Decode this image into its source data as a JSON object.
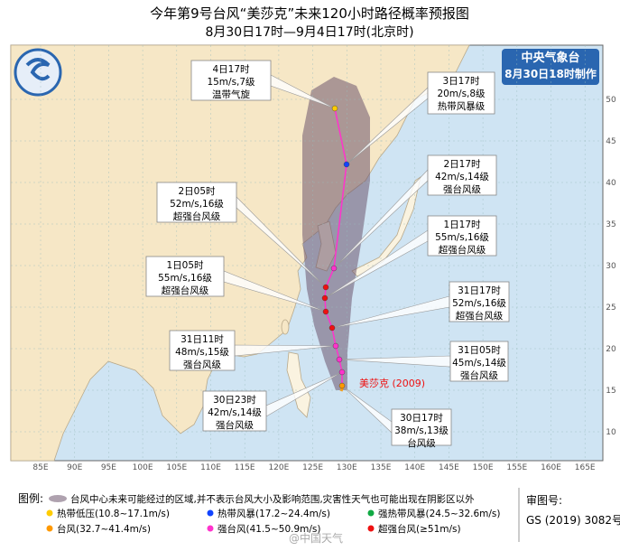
{
  "header": {
    "title": "今年第9号台风“美莎克”未来120小时路径概率预报图",
    "subtitle": "8月30日17时—9月4日17时(北京时)"
  },
  "agency": {
    "name": "中央气象台",
    "issued": "8月30日18时制作"
  },
  "typhoon_label": "美莎克 (2009)",
  "forecast_points": [
    {
      "time": "30日17时",
      "wind": "38m/s,13级",
      "grade": "台风级",
      "color": "#ff9900"
    },
    {
      "time": "30日23时",
      "wind": "42m/s,14级",
      "grade": "强台风级",
      "color": "#ff33cc"
    },
    {
      "time": "31日05时",
      "wind": "45m/s,14级",
      "grade": "强台风级",
      "color": "#ff33cc"
    },
    {
      "time": "31日11时",
      "wind": "48m/s,15级",
      "grade": "强台风级",
      "color": "#ff33cc"
    },
    {
      "time": "31日17时",
      "wind": "52m/s,16级",
      "grade": "超强台风级",
      "color": "#ee1111"
    },
    {
      "time": "1日05时",
      "wind": "55m/s,16级",
      "grade": "超强台风级",
      "color": "#ee1111"
    },
    {
      "time": "1日17时",
      "wind": "55m/s,16级",
      "grade": "超强台风级",
      "color": "#ee1111"
    },
    {
      "time": "2日05时",
      "wind": "52m/s,16级",
      "grade": "超强台风级",
      "color": "#ee1111"
    },
    {
      "time": "2日17时",
      "wind": "42m/s,14级",
      "grade": "强台风级",
      "color": "#ff33cc"
    },
    {
      "time": "3日17时",
      "wind": "20m/s,8级",
      "grade": "热带风暴级",
      "color": "#1144ff"
    },
    {
      "time": "4日17时",
      "wind": "15m/s,7级",
      "grade": "温带气旋",
      "color": "#ffcc00"
    }
  ],
  "longitude_labels": [
    "85E",
    "90E",
    "95E",
    "100E",
    "105E",
    "110E",
    "115E",
    "120E",
    "125E",
    "130E",
    "135E",
    "140E",
    "145E",
    "150E",
    "155E",
    "160E",
    "165E"
  ],
  "latitude_labels": [
    "50",
    "45",
    "40",
    "35",
    "30",
    "25",
    "20",
    "15",
    "10"
  ],
  "legend": {
    "title": "图例:",
    "cone": "台风中心未来可能经过的区域,并不表示台风大小及影响范围,灾害性天气也可能出现在阴影区以外",
    "items": [
      {
        "label": "热带低压(10.8~17.1m/s)",
        "color": "#ffcc00"
      },
      {
        "label": "热带风暴(17.2~24.4m/s)",
        "color": "#1144ff"
      },
      {
        "label": "强热带风暴(24.5~32.6m/s)",
        "color": "#11aa44"
      },
      {
        "label": "台风(32.7~41.4m/s)",
        "color": "#ff9900"
      },
      {
        "label": "强台风(41.5~50.9m/s)",
        "color": "#ff33cc"
      },
      {
        "label": "超强台风(≥51m/s)",
        "color": "#ee1111"
      }
    ]
  },
  "approval": {
    "label": "审图号:",
    "number": "GS (2019) 3082号"
  },
  "watermark": "@中国天气"
}
